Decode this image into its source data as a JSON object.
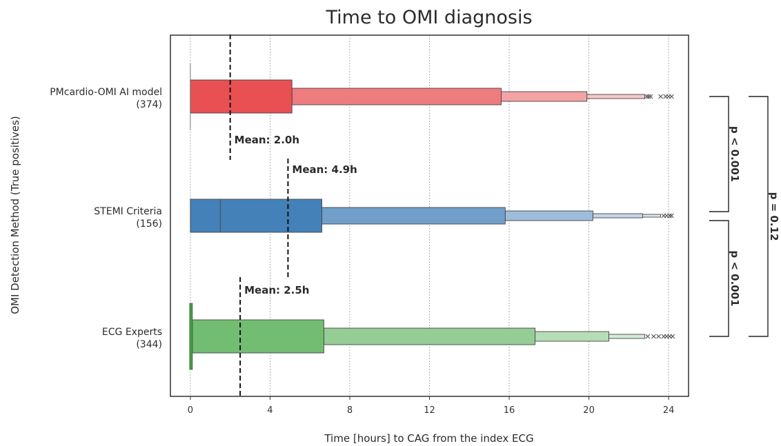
{
  "chart_data": {
    "type": "boxen",
    "title": "Time to OMI diagnosis",
    "xlabel": "Time [hours] to CAG from the index ECG",
    "ylabel": "OMI Detection Method (True positives)",
    "xlim": [
      -1,
      25
    ],
    "xticks": [
      0,
      4,
      8,
      12,
      16,
      20,
      24
    ],
    "grid": "vertical-dashed",
    "categories": [
      {
        "name": "PMcardio-OMI AI model",
        "count": "(374)",
        "color": "#e8474a",
        "mean": 2.0,
        "mean_label": "Mean: 2.0h",
        "median": 0.0,
        "boxes": [
          [
            0.0,
            5.1
          ],
          [
            5.1,
            15.6
          ],
          [
            15.6,
            19.9
          ],
          [
            19.9,
            22.8
          ]
        ],
        "outliers": [
          22.9,
          23.0,
          23.1,
          23.6,
          23.85,
          24.0,
          24.15
        ]
      },
      {
        "name": "STEMI Criteria",
        "count": "(156)",
        "color": "#3a7ab5",
        "mean": 4.9,
        "mean_label": "Mean: 4.9h",
        "median": 1.5,
        "boxes": [
          [
            0.0,
            6.6
          ],
          [
            6.6,
            15.8
          ],
          [
            15.8,
            20.2
          ],
          [
            20.2,
            22.7
          ],
          [
            22.7,
            23.6
          ]
        ],
        "outliers": [
          23.75,
          23.9,
          24.05,
          24.15
        ]
      },
      {
        "name": "ECG Experts",
        "count": "(344)",
        "color": "#6cba6b",
        "mean": 2.5,
        "mean_label": "Mean: 2.5h",
        "median": 0.1,
        "boxes": [
          [
            0.1,
            6.7
          ],
          [
            6.7,
            17.3
          ],
          [
            17.3,
            21.0
          ],
          [
            21.0,
            22.8
          ]
        ],
        "outliers": [
          22.95,
          23.25,
          23.5,
          23.75,
          23.9,
          24.05,
          24.2
        ]
      }
    ],
    "annotations": [
      {
        "text": "p < 0.001",
        "between": [
          0,
          1
        ]
      },
      {
        "text": "p < 0.001",
        "between": [
          1,
          2
        ]
      },
      {
        "text": "p = 0.12",
        "between": [
          0,
          2
        ]
      }
    ]
  }
}
